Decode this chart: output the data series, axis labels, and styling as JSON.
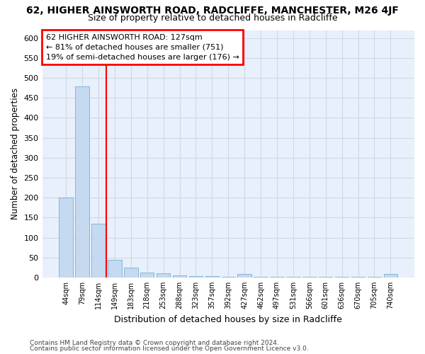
{
  "title": "62, HIGHER AINSWORTH ROAD, RADCLIFFE, MANCHESTER, M26 4JF",
  "subtitle": "Size of property relative to detached houses in Radcliffe",
  "xlabel": "Distribution of detached houses by size in Radcliffe",
  "ylabel": "Number of detached properties",
  "footer_line1": "Contains HM Land Registry data © Crown copyright and database right 2024.",
  "footer_line2": "Contains public sector information licensed under the Open Government Licence v3.0.",
  "bar_labels": [
    "44sqm",
    "79sqm",
    "114sqm",
    "149sqm",
    "183sqm",
    "218sqm",
    "253sqm",
    "288sqm",
    "323sqm",
    "357sqm",
    "392sqm",
    "427sqm",
    "462sqm",
    "497sqm",
    "531sqm",
    "566sqm",
    "601sqm",
    "636sqm",
    "670sqm",
    "705sqm",
    "740sqm"
  ],
  "bar_values": [
    201,
    479,
    135,
    44,
    25,
    13,
    11,
    5,
    4,
    3,
    2,
    9,
    1,
    1,
    1,
    1,
    1,
    1,
    1,
    1,
    8
  ],
  "bar_color": "#c5d9f0",
  "bar_edge_color": "#7aafd4",
  "bg_color": "#e8f0fb",
  "grid_color": "#d0d8e8",
  "vline_x": 2.5,
  "vline_color": "red",
  "annotation_text": "62 HIGHER AINSWORTH ROAD: 127sqm\n← 81% of detached houses are smaller (751)\n19% of semi-detached houses are larger (176) →",
  "annotation_box_color": "red",
  "ylim": [
    0,
    620
  ],
  "yticks": [
    0,
    50,
    100,
    150,
    200,
    250,
    300,
    350,
    400,
    450,
    500,
    550,
    600
  ]
}
